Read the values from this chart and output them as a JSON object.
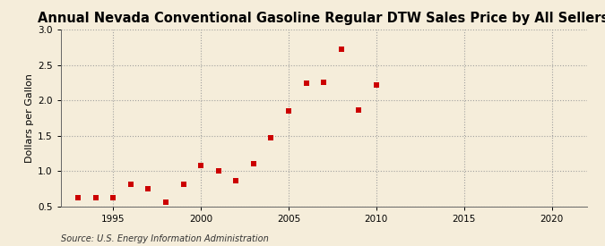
{
  "title": "Annual Nevada Conventional Gasoline Regular DTW Sales Price by All Sellers",
  "ylabel": "Dollars per Gallon",
  "source": "Source: U.S. Energy Information Administration",
  "years": [
    1993,
    1994,
    1995,
    1996,
    1997,
    1998,
    1999,
    2000,
    2001,
    2002,
    2003,
    2004,
    2005,
    2006,
    2007,
    2008,
    2009,
    2010
  ],
  "values": [
    0.62,
    0.63,
    0.63,
    0.82,
    0.75,
    0.56,
    0.82,
    1.08,
    1.0,
    0.86,
    1.1,
    1.47,
    1.85,
    2.24,
    2.25,
    2.72,
    1.86,
    2.22
  ],
  "marker_color": "#cc0000",
  "background_color": "#f5edda",
  "xlim": [
    1992,
    2022
  ],
  "ylim": [
    0.5,
    3.0
  ],
  "yticks": [
    0.5,
    1.0,
    1.5,
    2.0,
    2.5,
    3.0
  ],
  "xticks": [
    1995,
    2000,
    2005,
    2010,
    2015,
    2020
  ],
  "grid_color": "#999999",
  "title_fontsize": 10.5,
  "label_fontsize": 8,
  "tick_fontsize": 7.5,
  "source_fontsize": 7
}
